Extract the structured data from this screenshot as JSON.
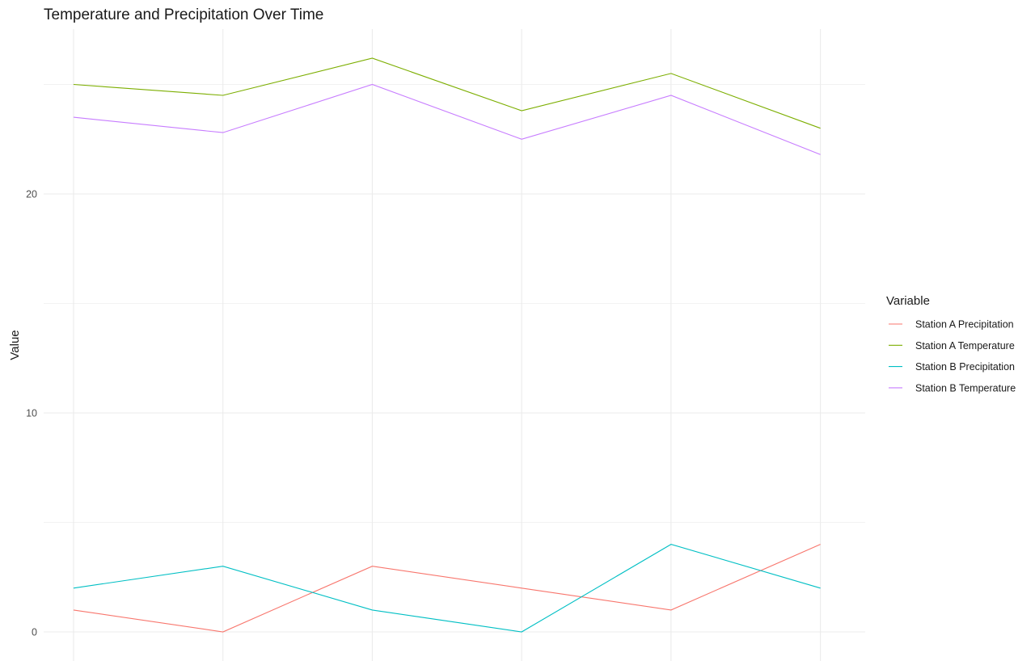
{
  "chart_data": {
    "type": "line",
    "title": "Temperature and Precipitation Over Time",
    "xlabel": "",
    "ylabel": "Value",
    "x": [
      1,
      2,
      3,
      4,
      5,
      6
    ],
    "xlim": [
      0.8,
      6.3
    ],
    "ylim": [
      0,
      27.5
    ],
    "y_ticks": [
      0,
      10,
      20
    ],
    "y_tick_labels": [
      "0",
      "10",
      "20"
    ],
    "y_minor_ticks": [
      5,
      15,
      25
    ],
    "x_ticks_shown": false,
    "grid": true,
    "legend": {
      "title": "Variable",
      "position": "right"
    },
    "series": [
      {
        "name": "Station A Precipitation",
        "color": "#F8766D",
        "values": [
          1,
          0,
          3,
          2,
          1,
          4
        ]
      },
      {
        "name": "Station A Temperature",
        "color": "#7CAE00",
        "values": [
          25,
          24.5,
          26.2,
          23.8,
          25.5,
          23
        ]
      },
      {
        "name": "Station B Precipitation",
        "color": "#00BFC4",
        "values": [
          2,
          3,
          1,
          0,
          4,
          2
        ]
      },
      {
        "name": "Station B Temperature",
        "color": "#C77CFF",
        "values": [
          23.5,
          22.8,
          25,
          22.5,
          24.5,
          21.8
        ]
      }
    ]
  }
}
